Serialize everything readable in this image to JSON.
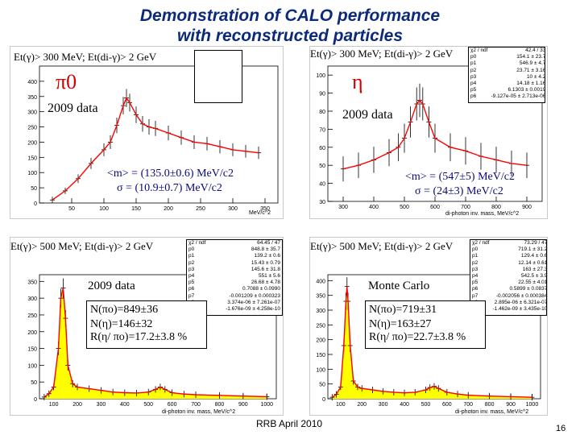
{
  "slide": {
    "title_line1": "Demonstration of CALO performance",
    "title_line2": "with reconstructed particles",
    "footer": "RRB April 2010",
    "page_number": "16"
  },
  "colors": {
    "title": "#0b2a7a",
    "fill": "#ffff00",
    "fit": "#ff0000",
    "accent": "#d40000",
    "mass_text": "#0a0a7a"
  },
  "panels": [
    {
      "id": "pi0-300",
      "selection": "Et(γ)> 300 MeV; Et(di-γ)> 2 GeV",
      "particle": "π0",
      "sample": "2009 data",
      "mass_line": "<m> = (135.0±0.6) MeV/c2",
      "sigma_line": "σ  = (10.9±0.7)  MeV/c2",
      "x_title": "MeV/c^2",
      "chart_data": {
        "type": "line",
        "x_ticks": [
          "50",
          "100",
          "150",
          "200",
          "250",
          "300",
          "350"
        ],
        "y_ticks": [
          "0",
          "50",
          "100",
          "150",
          "200",
          "250",
          "300",
          "350",
          "400"
        ],
        "xlim": [
          0,
          370
        ],
        "ylim": [
          0,
          450
        ],
        "x": [
          20,
          40,
          60,
          80,
          100,
          110,
          120,
          130,
          135,
          140,
          150,
          160,
          170,
          180,
          200,
          220,
          240,
          260,
          280,
          300,
          320,
          340
        ],
        "y": [
          10,
          40,
          80,
          130,
          175,
          200,
          255,
          320,
          345,
          330,
          290,
          260,
          250,
          245,
          230,
          215,
          200,
          195,
          185,
          175,
          170,
          165
        ]
      }
    },
    {
      "id": "eta-300",
      "selection": "Et(γ)> 300 MeV; Et(di-γ)> 2 GeV",
      "particle": "η",
      "sample": "2009 data",
      "mass_line": "<m> = (547±5) MeV/c2",
      "sigma_line": "σ   = (24±3)  MeV/c2",
      "x_title": "di-photon inv. mass, MeV/c^2",
      "fit_title": "χ2 / ndf",
      "fit_rows": [
        [
          "χ2 / ndf",
          "42.4 / 33"
        ],
        [
          "p0",
          "154.1 ± 23.7"
        ],
        [
          "p1",
          "546.9 ± 4.7"
        ],
        [
          "p2",
          "23.71 ± 3.16"
        ],
        [
          "p3",
          "10 ± 4.2"
        ],
        [
          "p4",
          "14.18 ± 1.16"
        ],
        [
          "p5",
          "6.1303 ± 0.0019"
        ],
        [
          "p6",
          "-9.127e-05 ± 2.713e-06"
        ]
      ],
      "chart_data": {
        "type": "line",
        "x_ticks": [
          "300",
          "400",
          "500",
          "600",
          "700",
          "800",
          "900"
        ],
        "y_ticks": [
          "30",
          "40",
          "50",
          "60",
          "70",
          "80",
          "90",
          "100"
        ],
        "xlim": [
          250,
          950
        ],
        "ylim": [
          30,
          105
        ],
        "x": [
          300,
          350,
          400,
          450,
          480,
          500,
          520,
          540,
          550,
          560,
          580,
          600,
          650,
          700,
          750,
          800,
          850,
          900
        ],
        "y": [
          48,
          50,
          53,
          57,
          60,
          65,
          74,
          84,
          86,
          84,
          74,
          65,
          60,
          58,
          55,
          53,
          51,
          50
        ]
      }
    },
    {
      "id": "data-500",
      "selection": "Et(γ)> 500 MeV; Et(di-γ)> 2 GeV",
      "sample": "2009 data",
      "stats": [
        "N(πo)=849±36",
        "N(η)=146±32",
        "R(η/ πo)=17.2±3.8 %"
      ],
      "x_title": "di-photon inv. mass, MeV/c^2",
      "fit_rows": [
        [
          "χ2 / ndf",
          "64.45 / 47"
        ],
        [
          "p0",
          "848.8 ± 35.7"
        ],
        [
          "p1",
          "139.2 ± 0.6"
        ],
        [
          "p2",
          "15.43 ± 0.79"
        ],
        [
          "p3",
          "145.6 ± 31.8"
        ],
        [
          "p4",
          "551 ± 5.6"
        ],
        [
          "p5",
          "26.68 ± 4.78"
        ],
        [
          "p6",
          "0.7088 ± 0.0990"
        ],
        [
          "p7",
          "-0.001209 ± 0.000323"
        ],
        [
          "p8",
          "3.374e-06 ± 7.261e-07"
        ],
        [
          "p9",
          "-1.676e-09 ± 4.258e-10"
        ]
      ],
      "chart_data": {
        "type": "line",
        "x_ticks": [
          "100",
          "200",
          "300",
          "400",
          "500",
          "600",
          "700",
          "800",
          "900",
          "1000"
        ],
        "y_ticks": [
          "0",
          "50",
          "100",
          "150",
          "200",
          "250",
          "300",
          "350"
        ],
        "xlim": [
          40,
          1040
        ],
        "ylim": [
          0,
          370
        ],
        "x": [
          60,
          80,
          100,
          120,
          130,
          140,
          150,
          160,
          180,
          200,
          250,
          300,
          350,
          400,
          450,
          500,
          530,
          550,
          570,
          600,
          650,
          700,
          800,
          900,
          1000
        ],
        "y": [
          5,
          15,
          35,
          150,
          300,
          330,
          240,
          100,
          45,
          35,
          30,
          25,
          20,
          18,
          17,
          20,
          28,
          35,
          28,
          18,
          14,
          12,
          10,
          8,
          6
        ]
      }
    },
    {
      "id": "mc-500",
      "selection": "Et(γ)> 500 MeV; Et(di-γ)> 2 GeV",
      "sample": "Monte Carlo",
      "stats": [
        "N(πo)=719±31",
        "N(η)=163±27",
        "R(η/ πo)=22.7±3.8 %"
      ],
      "x_title": "di-photon inv. mass, MeV/c^2",
      "fit_rows": [
        [
          "χ2 / ndf",
          "73.29 / 47"
        ],
        [
          "p0",
          "719.1 ± 31.2"
        ],
        [
          "p1",
          "129.4 ± 0.6"
        ],
        [
          "p2",
          "12.14 ± 0.61"
        ],
        [
          "p3",
          "163 ± 27.3"
        ],
        [
          "p4",
          "542.5 ± 3.9"
        ],
        [
          "p5",
          "22.55 ± 4.01"
        ],
        [
          "p6",
          "0.5899 ± 0.0837"
        ],
        [
          "p7",
          "-0.002056 ± 0.000384"
        ],
        [
          "p8",
          "2.895e-06 ± 6.321e-07"
        ],
        [
          "p9",
          "-1.462e-09 ± 3.435e-10"
        ]
      ],
      "chart_data": {
        "type": "line",
        "x_ticks": [
          "100",
          "200",
          "300",
          "400",
          "500",
          "600",
          "700",
          "800",
          "900",
          "1000"
        ],
        "y_ticks": [
          "0",
          "50",
          "100",
          "150",
          "200",
          "250",
          "300",
          "350",
          "400"
        ],
        "xlim": [
          40,
          1040
        ],
        "ylim": [
          0,
          420
        ],
        "x": [
          60,
          80,
          100,
          115,
          125,
          130,
          135,
          145,
          160,
          180,
          200,
          250,
          300,
          350,
          400,
          450,
          500,
          520,
          540,
          560,
          600,
          650,
          700,
          800,
          900,
          1000
        ],
        "y": [
          5,
          15,
          40,
          180,
          330,
          380,
          330,
          180,
          60,
          40,
          35,
          30,
          25,
          22,
          20,
          22,
          30,
          38,
          42,
          35,
          22,
          16,
          12,
          9,
          7,
          5
        ]
      }
    }
  ]
}
